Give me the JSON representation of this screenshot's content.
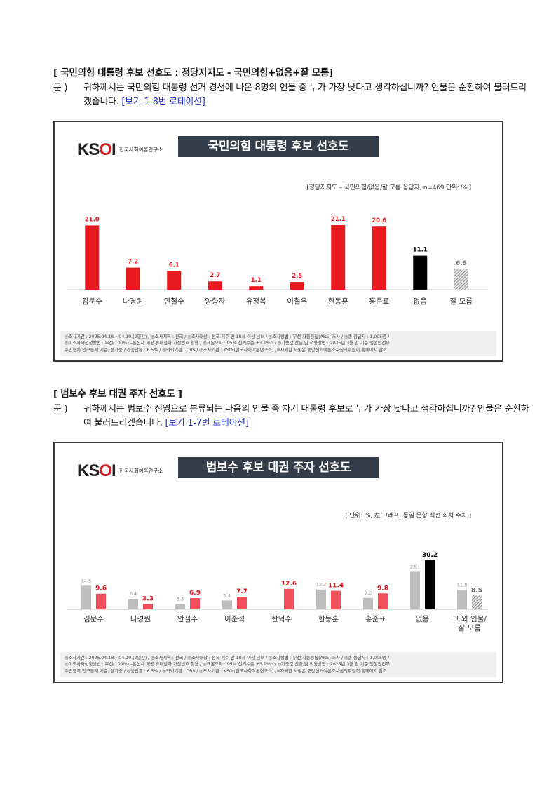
{
  "section1": {
    "title": "[ 국민의힘 대통령 후보 선호도 : 정당지지도 - 국민의힘+없음+잘 모름]",
    "question_mark": "문 )",
    "question_text": "귀하께서는 국민의힘 대통령 선거 경선에 나온 8명의 인물 중 누가 가장 낫다고 생각하십니까? 인물은 순환하여 불러드리겠습니다. ",
    "rotation": "[보기 1-8번 로테이션]",
    "panel": {
      "logo": "KSOI",
      "logo_sub": "한국사회여론연구소",
      "title": "국민의힘 대통령 후보 선호도",
      "note": "[정당지지도 – 국민의힘/없음/잘 모름 응답자, n=469 단위: % ]",
      "footer_line1": "◎조사기간 : 2025.04.18.~04.19.(2일간) / ◎조사지역 : 전국 / ◎조사대상 : 전국 거주 만 18세 이상 남녀 / ◎조사방법 : 무선 자동응답(ARS) 조사 / ◎총 응답자 : 1,005명 /",
      "footer_line2": "◎피조사자선정방법 : 무선(100%) –통신사 제공 휴대전화 가상번호 활용 / ◎표본오차 : 95% 신뢰수준 ±3.1%p / ◎가중값 산출 및 적용방법 : 2025년 3월 말 기준 행정안전부",
      "footer_line3": "주민등록 인구통계 기준, 셀가중 / ◎응답률 : 6.5% / ◎의뢰기관 : CBS / ◎조사기관 : KSOI(한국사회여론연구소) /※자세한 사항은 중앙선거여론조사심의위원회 홈페이지 참조"
    }
  },
  "section2": {
    "title": "[ 범보수 후보 대권 주자 선호도 ]",
    "question_mark": "문 )",
    "question_text": "귀하께서는 범보수 진영으로 분류되는 다음의 인물 중 차기 대통령 후보로 누가 가장 낫다고 생각하십니까? 인물은 순환하여 불러드리겠습니다. ",
    "rotation": "[보기 1-7번 로테이션]",
    "panel": {
      "logo": "KSOI",
      "logo_sub": "한국사회여론연구소",
      "title": "범보수 후보 대권 주자 선호도",
      "note": "[ 단위: %, 左 그래프, 동일 문항 직전 회차 수치 ]",
      "footer_line1": "◎조사기간 : 2025.04.18.~04.19.(2일간) / ◎조사지역 : 전국 / ◎조사대상 : 전국 거주 만 18세 이상 남녀 / ◎조사방법 : 무선 자동응답(ARS) 조사 / ◎총 응답자 : 1,005명 /",
      "footer_line2": "◎피조사자선정방법 : 무선(100%) –통신사 제공 휴대전화 가상번호 활용 / ◎표본오차 : 95% 신뢰수준 ±3.1%p / ◎가중값 산출 및 적용방법 : 2025년 3월 말 기준 행정안전부",
      "footer_line3": "주민등록 인구통계 기준, 셀가중 / ◎응답률 : 6.5% / ◎의뢰기관 : CBS / ◎조사기관 : KSOI(한국사회여론연구소) /※자세한 사항은 중앙선거여론조사심의위원회 홈페이지 참조"
    }
  },
  "colors": {
    "red": "#e8191e",
    "black": "#000000",
    "gray": "#bdbdbd",
    "pink": "#f0505a",
    "title_bg": "#333c49"
  },
  "chart_data": [
    {
      "type": "bar",
      "title": "국민의힘 대통령 후보 선호도",
      "categories": [
        "김문수",
        "나경원",
        "안철수",
        "양향자",
        "유정복",
        "이철우",
        "한동훈",
        "홍준표",
        "없음",
        "잘 모름"
      ],
      "values": [
        21.0,
        7.2,
        6.1,
        2.7,
        1.1,
        2.5,
        21.1,
        20.6,
        11.1,
        6.6
      ],
      "value_labels": [
        "21.0",
        "7.2",
        "6.1",
        "2.7",
        "1.1",
        "2.5",
        "21.1",
        "20.6",
        "11.1",
        "6.6"
      ],
      "styles": [
        "red",
        "red",
        "red",
        "red",
        "red",
        "red",
        "red",
        "red",
        "black",
        "hatch"
      ],
      "ylim": [
        0,
        25
      ]
    },
    {
      "type": "bar",
      "title": "범보수 후보 대권 주자 선호도",
      "categories": [
        "김문수",
        "나경원",
        "안철수",
        "이준석",
        "한덕수",
        "한동훈",
        "홍준표",
        "없음",
        "그 외 인물/ 잘 모름"
      ],
      "series": [
        {
          "values": [
            14.5,
            6.4,
            3.3,
            5.4,
            null,
            12.2,
            7.0,
            23.1,
            11.8
          ],
          "value_labels": [
            "14.5",
            "6.4",
            "3.3",
            "5.4",
            "",
            "12.2",
            "7.0",
            "23.1",
            "11.8"
          ]
        },
        {
          "values": [
            9.6,
            3.3,
            6.9,
            7.7,
            12.6,
            11.4,
            9.8,
            30.2,
            8.5
          ],
          "value_labels": [
            "9.6",
            "3.3",
            "6.9",
            "7.7",
            "12.6",
            "11.4",
            "9.8",
            "30.2",
            "8.5"
          ]
        }
      ],
      "current_styles": [
        "pink",
        "pink",
        "pink",
        "pink",
        "pink",
        "pink",
        "pink",
        "black",
        "hatch"
      ],
      "ylim": [
        0,
        35
      ]
    }
  ]
}
